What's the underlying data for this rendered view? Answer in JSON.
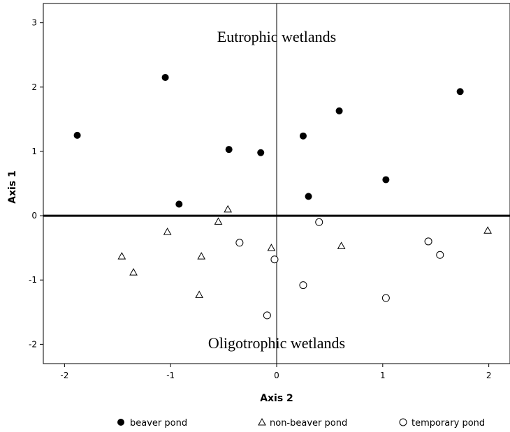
{
  "chart_data": {
    "type": "scatter",
    "xlabel": "Axis 2",
    "ylabel": "Axis 1",
    "xlim": [
      -2.2,
      2.2
    ],
    "ylim": [
      -2.3,
      3.3
    ],
    "xticks": [
      -2,
      -1,
      0,
      1,
      2
    ],
    "yticks": [
      -2,
      -1,
      0,
      1,
      2,
      3
    ],
    "xtick_labels": [
      "-2",
      "-1",
      "0",
      "1",
      "2"
    ],
    "ytick_labels": [
      "-2",
      "-1",
      "0",
      "1",
      "2",
      "3"
    ],
    "annotations": [
      {
        "text": "Eutrophic wetlands",
        "x": 0.0,
        "y": 2.8
      },
      {
        "text": "Oligotrophic wetlands",
        "x": 0.0,
        "y": -1.92
      }
    ],
    "reference_lines": {
      "horizontal_at": 0,
      "vertical_at": 0
    },
    "legend_position": "bottom",
    "grid": false,
    "series": [
      {
        "name": "beaver pond",
        "marker": "filled-circle",
        "points": [
          {
            "x": -1.88,
            "y": 1.25
          },
          {
            "x": -1.05,
            "y": 2.15
          },
          {
            "x": -0.92,
            "y": 0.18
          },
          {
            "x": -0.45,
            "y": 1.03
          },
          {
            "x": -0.15,
            "y": 0.98
          },
          {
            "x": 0.25,
            "y": 1.24
          },
          {
            "x": 0.3,
            "y": 0.3
          },
          {
            "x": 0.59,
            "y": 1.63
          },
          {
            "x": 1.03,
            "y": 0.56
          },
          {
            "x": 1.73,
            "y": 1.93
          }
        ]
      },
      {
        "name": "non-beaver pond",
        "marker": "open-triangle",
        "points": [
          {
            "x": -1.46,
            "y": -0.63
          },
          {
            "x": -1.35,
            "y": -0.88
          },
          {
            "x": -1.03,
            "y": -0.25
          },
          {
            "x": -0.71,
            "y": -0.63
          },
          {
            "x": -0.73,
            "y": -1.23
          },
          {
            "x": -0.55,
            "y": -0.09
          },
          {
            "x": -0.46,
            "y": 0.1
          },
          {
            "x": -0.05,
            "y": -0.5
          },
          {
            "x": 0.61,
            "y": -0.47
          },
          {
            "x": 1.99,
            "y": -0.23
          }
        ]
      },
      {
        "name": "temporary pond",
        "marker": "open-circle",
        "points": [
          {
            "x": -0.35,
            "y": -0.42
          },
          {
            "x": -0.02,
            "y": -0.68
          },
          {
            "x": 0.4,
            "y": -0.1
          },
          {
            "x": 0.25,
            "y": -1.08
          },
          {
            "x": -0.09,
            "y": -1.55
          },
          {
            "x": 1.03,
            "y": -1.28
          },
          {
            "x": 1.43,
            "y": -0.4
          },
          {
            "x": 1.54,
            "y": -0.61
          }
        ]
      }
    ]
  }
}
